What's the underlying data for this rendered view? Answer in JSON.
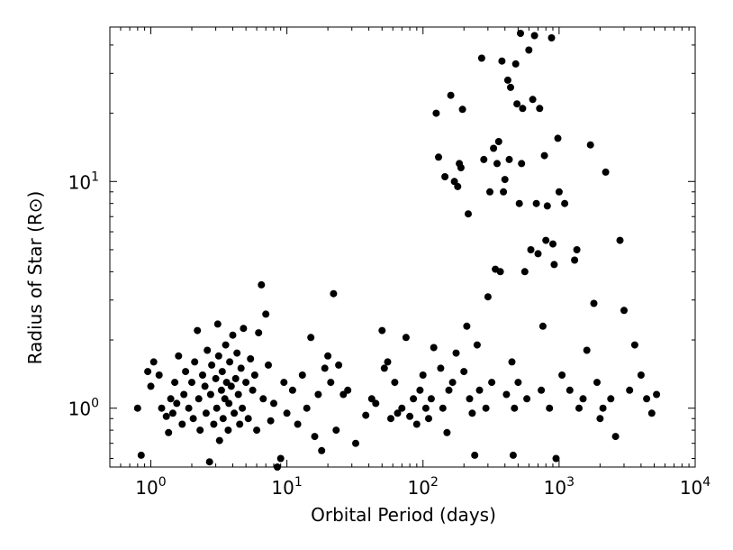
{
  "chart_data": {
    "type": "scatter",
    "title": "",
    "xlabel": "Orbital Period (days)",
    "ylabel": "Radius of Star (R⊙)",
    "xscale": "log",
    "yscale": "log",
    "xlim": [
      0.5,
      10000
    ],
    "ylim": [
      0.55,
      48
    ],
    "grid": false,
    "legend": "none",
    "marker_color": "#000000",
    "x_ticks": [
      {
        "value": 1,
        "base": "10",
        "exp": "0"
      },
      {
        "value": 10,
        "base": "10",
        "exp": "1"
      },
      {
        "value": 100,
        "base": "10",
        "exp": "2"
      },
      {
        "value": 1000,
        "base": "10",
        "exp": "3"
      },
      {
        "value": 10000,
        "base": "10",
        "exp": "4"
      }
    ],
    "y_ticks": [
      {
        "value": 1,
        "base": "10",
        "exp": "0"
      },
      {
        "value": 10,
        "base": "10",
        "exp": "1"
      }
    ],
    "points": [
      [
        0.8,
        1.0
      ],
      [
        0.85,
        0.62
      ],
      [
        0.95,
        1.45
      ],
      [
        1.0,
        1.25
      ],
      [
        1.05,
        1.6
      ],
      [
        1.15,
        1.4
      ],
      [
        1.2,
        1.0
      ],
      [
        1.3,
        0.92
      ],
      [
        1.35,
        0.78
      ],
      [
        1.4,
        1.1
      ],
      [
        1.45,
        0.95
      ],
      [
        1.5,
        1.3
      ],
      [
        1.55,
        1.05
      ],
      [
        1.6,
        1.7
      ],
      [
        1.7,
        0.85
      ],
      [
        1.75,
        1.15
      ],
      [
        1.8,
        1.45
      ],
      [
        1.9,
        1.0
      ],
      [
        2.0,
        1.3
      ],
      [
        2.05,
        0.9
      ],
      [
        2.1,
        1.6
      ],
      [
        2.2,
        2.2
      ],
      [
        2.25,
        1.1
      ],
      [
        2.3,
        0.8
      ],
      [
        2.4,
        1.4
      ],
      [
        2.5,
        1.25
      ],
      [
        2.55,
        0.95
      ],
      [
        2.6,
        1.8
      ],
      [
        2.7,
        0.58
      ],
      [
        2.75,
        1.15
      ],
      [
        2.8,
        1.55
      ],
      [
        2.9,
        0.85
      ],
      [
        3.0,
        1.35
      ],
      [
        3.05,
        1.0
      ],
      [
        3.1,
        2.35
      ],
      [
        3.15,
        1.7
      ],
      [
        3.2,
        0.72
      ],
      [
        3.3,
        1.2
      ],
      [
        3.35,
        1.45
      ],
      [
        3.4,
        0.9
      ],
      [
        3.5,
        1.1
      ],
      [
        3.55,
        1.9
      ],
      [
        3.6,
        1.3
      ],
      [
        3.7,
        0.8
      ],
      [
        3.75,
        1.05
      ],
      [
        3.8,
        1.6
      ],
      [
        3.9,
        1.25
      ],
      [
        4.0,
        2.1
      ],
      [
        4.1,
        0.95
      ],
      [
        4.2,
        1.35
      ],
      [
        4.3,
        1.75
      ],
      [
        4.4,
        1.15
      ],
      [
        4.5,
        0.85
      ],
      [
        4.6,
        1.5
      ],
      [
        4.7,
        1.0
      ],
      [
        4.8,
        2.25
      ],
      [
        5.0,
        1.3
      ],
      [
        5.2,
        0.9
      ],
      [
        5.4,
        1.65
      ],
      [
        5.6,
        1.2
      ],
      [
        5.8,
        1.4
      ],
      [
        6.0,
        0.8
      ],
      [
        6.2,
        2.15
      ],
      [
        6.5,
        3.5
      ],
      [
        6.7,
        1.1
      ],
      [
        7.0,
        2.6
      ],
      [
        7.3,
        1.55
      ],
      [
        7.6,
        0.88
      ],
      [
        8.0,
        1.05
      ],
      [
        8.5,
        0.55
      ],
      [
        9.0,
        0.6
      ],
      [
        9.5,
        1.3
      ],
      [
        10.0,
        0.95
      ],
      [
        11.0,
        1.2
      ],
      [
        12.0,
        0.85
      ],
      [
        13.0,
        1.4
      ],
      [
        14.0,
        1.0
      ],
      [
        15.0,
        2.05
      ],
      [
        16.0,
        0.75
      ],
      [
        17.0,
        1.15
      ],
      [
        18.0,
        0.65
      ],
      [
        19.0,
        1.5
      ],
      [
        20.0,
        1.7
      ],
      [
        21.0,
        1.3
      ],
      [
        22.0,
        3.2
      ],
      [
        23.0,
        0.8
      ],
      [
        24.0,
        1.55
      ],
      [
        26.0,
        1.15
      ],
      [
        28.0,
        1.2
      ],
      [
        32.0,
        0.7
      ],
      [
        38.0,
        0.93
      ],
      [
        42.0,
        1.1
      ],
      [
        45.0,
        1.05
      ],
      [
        50.0,
        2.2
      ],
      [
        52.0,
        1.5
      ],
      [
        55.0,
        1.6
      ],
      [
        58.0,
        0.9
      ],
      [
        62.0,
        1.3
      ],
      [
        65.0,
        0.95
      ],
      [
        70.0,
        1.0
      ],
      [
        75.0,
        2.05
      ],
      [
        80.0,
        0.92
      ],
      [
        85.0,
        1.1
      ],
      [
        90.0,
        0.85
      ],
      [
        95.0,
        1.2
      ],
      [
        100.0,
        1.4
      ],
      [
        105.0,
        1.0
      ],
      [
        110.0,
        0.9
      ],
      [
        115.0,
        1.1
      ],
      [
        120.0,
        1.85
      ],
      [
        125.0,
        20.0
      ],
      [
        130.0,
        12.8
      ],
      [
        135.0,
        1.5
      ],
      [
        140.0,
        1.0
      ],
      [
        145.0,
        10.5
      ],
      [
        150.0,
        0.78
      ],
      [
        155.0,
        1.2
      ],
      [
        160.0,
        24.0
      ],
      [
        165.0,
        1.3
      ],
      [
        170.0,
        10.0
      ],
      [
        175.0,
        1.75
      ],
      [
        180.0,
        9.5
      ],
      [
        185.0,
        12.0
      ],
      [
        190.0,
        11.5
      ],
      [
        195.0,
        20.8
      ],
      [
        200.0,
        1.45
      ],
      [
        210.0,
        2.3
      ],
      [
        215.0,
        7.2
      ],
      [
        220.0,
        1.1
      ],
      [
        230.0,
        0.95
      ],
      [
        240.0,
        0.62
      ],
      [
        250.0,
        1.9
      ],
      [
        260.0,
        1.2
      ],
      [
        270.0,
        35.0
      ],
      [
        280.0,
        12.5
      ],
      [
        290.0,
        1.0
      ],
      [
        300.0,
        3.1
      ],
      [
        310.0,
        9.0
      ],
      [
        320.0,
        1.3
      ],
      [
        330.0,
        14.0
      ],
      [
        340.0,
        4.1
      ],
      [
        350.0,
        12.0
      ],
      [
        360.0,
        15.0
      ],
      [
        370.0,
        4.0
      ],
      [
        380.0,
        34.0
      ],
      [
        390.0,
        9.0
      ],
      [
        400.0,
        10.2
      ],
      [
        410.0,
        1.15
      ],
      [
        420.0,
        28.0
      ],
      [
        430.0,
        12.5
      ],
      [
        440.0,
        26.0
      ],
      [
        450.0,
        1.6
      ],
      [
        460.0,
        0.62
      ],
      [
        470.0,
        1.0
      ],
      [
        480.0,
        33.0
      ],
      [
        490.0,
        22.0
      ],
      [
        500.0,
        1.3
      ],
      [
        510.0,
        8.0
      ],
      [
        520.0,
        45.0
      ],
      [
        530.0,
        12.0
      ],
      [
        540.0,
        21.0
      ],
      [
        560.0,
        4.0
      ],
      [
        580.0,
        1.1
      ],
      [
        600.0,
        38.0
      ],
      [
        620.0,
        5.0
      ],
      [
        640.0,
        23.0
      ],
      [
        660.0,
        44.0
      ],
      [
        680.0,
        8.0
      ],
      [
        700.0,
        4.8
      ],
      [
        720.0,
        21.0
      ],
      [
        740.0,
        1.2
      ],
      [
        760.0,
        2.3
      ],
      [
        780.0,
        13.0
      ],
      [
        800.0,
        5.5
      ],
      [
        820.0,
        7.8
      ],
      [
        850.0,
        1.0
      ],
      [
        880.0,
        43.0
      ],
      [
        900.0,
        5.3
      ],
      [
        920.0,
        4.3
      ],
      [
        950.0,
        0.6
      ],
      [
        980.0,
        15.5
      ],
      [
        1000.0,
        9.0
      ],
      [
        1050.0,
        1.4
      ],
      [
        1100.0,
        8.0
      ],
      [
        1200.0,
        1.2
      ],
      [
        1300.0,
        4.5
      ],
      [
        1350.0,
        5.0
      ],
      [
        1400.0,
        1.0
      ],
      [
        1500.0,
        1.1
      ],
      [
        1600.0,
        1.8
      ],
      [
        1700.0,
        14.5
      ],
      [
        1800.0,
        2.9
      ],
      [
        1900.0,
        1.3
      ],
      [
        2000.0,
        0.9
      ],
      [
        2100.0,
        1.0
      ],
      [
        2200.0,
        11.0
      ],
      [
        2400.0,
        1.1
      ],
      [
        2600.0,
        0.75
      ],
      [
        2800.0,
        5.5
      ],
      [
        3000.0,
        2.7
      ],
      [
        3300.0,
        1.2
      ],
      [
        3600.0,
        1.9
      ],
      [
        4000.0,
        1.4
      ],
      [
        4400.0,
        1.1
      ],
      [
        4800.0,
        0.95
      ],
      [
        5200.0,
        1.15
      ]
    ]
  }
}
